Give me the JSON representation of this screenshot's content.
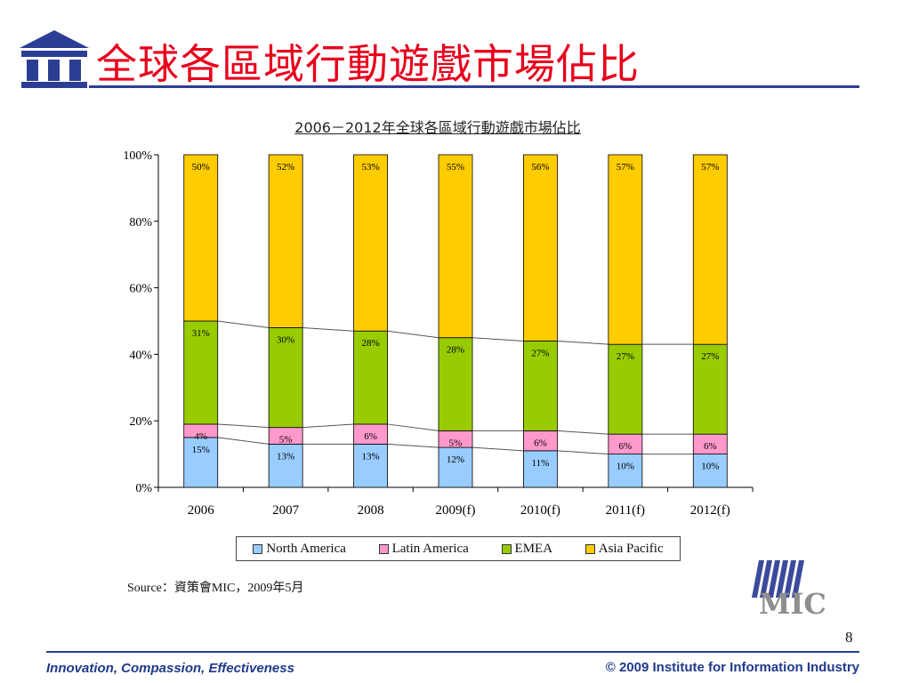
{
  "slide": {
    "title": "全球各區域行動遊戲市場佔比",
    "page_number": "8",
    "footer_left": "Innovation, Compassion, Effectiveness",
    "footer_right": "© 2009 Institute for Information Industry",
    "source": "Source：資策會MIC，2009年5月",
    "mic_logo_text": "MIC"
  },
  "colors": {
    "title": "#e8001c",
    "rule": "#2c3e94",
    "footer": "#1f3a8a",
    "north_america": "#99ccff",
    "latin_america": "#ff99cc",
    "emea": "#99cc00",
    "asia_pacific": "#ffcc00"
  },
  "chart_data": {
    "type": "bar",
    "stacked": true,
    "title": "2006－2012年全球各區域行動遊戲市場佔比",
    "categories": [
      "2006",
      "2007",
      "2008",
      "2009(f)",
      "2010(f)",
      "2011(f)",
      "2012(f)"
    ],
    "ylim": [
      0,
      100
    ],
    "yticks": [
      "0%",
      "20%",
      "40%",
      "60%",
      "80%",
      "100%"
    ],
    "legend_position": "bottom",
    "series": [
      {
        "name": "North America",
        "color": "#99ccff",
        "values": [
          15,
          13,
          13,
          12,
          11,
          10,
          10
        ]
      },
      {
        "name": "Latin America",
        "color": "#ff99cc",
        "values": [
          4,
          5,
          6,
          5,
          6,
          6,
          6
        ]
      },
      {
        "name": "EMEA",
        "color": "#99cc00",
        "values": [
          31,
          30,
          28,
          28,
          27,
          27,
          27
        ]
      },
      {
        "name": "Asia Pacific",
        "color": "#ffcc00",
        "values": [
          50,
          52,
          53,
          55,
          56,
          57,
          57
        ]
      }
    ]
  }
}
